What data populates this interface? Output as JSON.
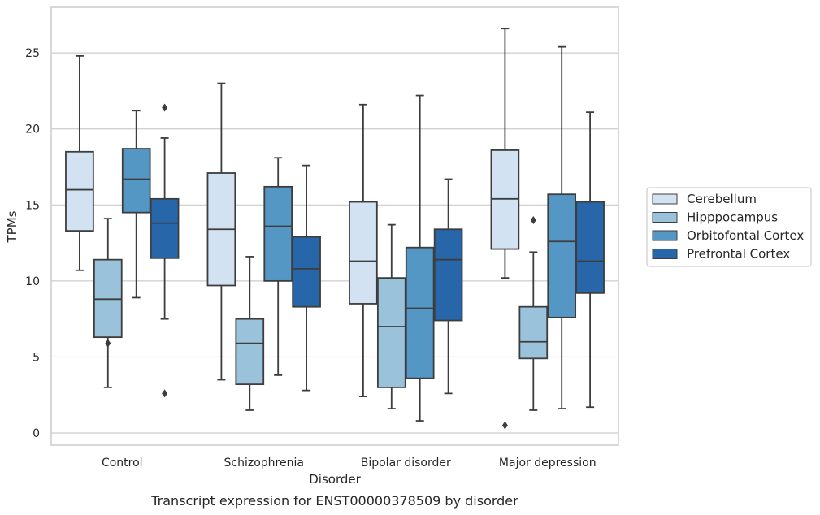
{
  "chart_data": {
    "type": "boxplot",
    "caption": "Transcript expression for ENST00000378509 by disorder",
    "xlabel": "Disorder",
    "ylabel": "TPMs",
    "ylim": [
      -0.8,
      28
    ],
    "yticks": [
      0,
      5,
      10,
      15,
      20,
      25
    ],
    "categories": [
      "Control",
      "Schizophrenia",
      "Bipolar disorder",
      "Major depression"
    ],
    "grid": "horizontal",
    "legend_position": "right",
    "series": [
      {
        "name": "Cerebellum",
        "color": "#d2e2f2",
        "boxes": [
          {
            "whisker_low": 10.7,
            "q1": 13.3,
            "median": 16.0,
            "q3": 18.5,
            "whisker_high": 24.8,
            "outliers": []
          },
          {
            "whisker_low": 3.5,
            "q1": 9.7,
            "median": 13.4,
            "q3": 17.1,
            "whisker_high": 23.0,
            "outliers": []
          },
          {
            "whisker_low": 2.4,
            "q1": 8.5,
            "median": 11.3,
            "q3": 15.2,
            "whisker_high": 21.6,
            "outliers": []
          },
          {
            "whisker_low": 10.2,
            "q1": 12.1,
            "median": 15.4,
            "q3": 18.6,
            "whisker_high": 26.6,
            "outliers": [
              0.5
            ]
          }
        ]
      },
      {
        "name": "Hipppocampus",
        "color": "#9ac3db",
        "boxes": [
          {
            "whisker_low": 3.0,
            "q1": 6.3,
            "median": 8.8,
            "q3": 11.4,
            "whisker_high": 14.1,
            "outliers": [
              5.9
            ]
          },
          {
            "whisker_low": 1.5,
            "q1": 3.2,
            "median": 5.9,
            "q3": 7.5,
            "whisker_high": 11.6,
            "outliers": []
          },
          {
            "whisker_low": 1.6,
            "q1": 3.0,
            "median": 7.0,
            "q3": 10.2,
            "whisker_high": 13.7,
            "outliers": []
          },
          {
            "whisker_low": 1.5,
            "q1": 4.9,
            "median": 6.0,
            "q3": 8.3,
            "whisker_high": 11.9,
            "outliers": [
              14.0
            ]
          }
        ]
      },
      {
        "name": "Orbitofontal Cortex",
        "color": "#5597c4",
        "boxes": [
          {
            "whisker_low": 8.9,
            "q1": 14.5,
            "median": 16.7,
            "q3": 18.7,
            "whisker_high": 21.2,
            "outliers": []
          },
          {
            "whisker_low": 3.8,
            "q1": 10.0,
            "median": 13.6,
            "q3": 16.2,
            "whisker_high": 18.1,
            "outliers": []
          },
          {
            "whisker_low": 0.8,
            "q1": 3.6,
            "median": 8.2,
            "q3": 12.2,
            "whisker_high": 22.2,
            "outliers": []
          },
          {
            "whisker_low": 1.6,
            "q1": 7.6,
            "median": 12.6,
            "q3": 15.7,
            "whisker_high": 25.4,
            "outliers": []
          }
        ]
      },
      {
        "name": "Prefrontal Cortex",
        "color": "#2766a8",
        "boxes": [
          {
            "whisker_low": 7.5,
            "q1": 11.5,
            "median": 13.8,
            "q3": 15.4,
            "whisker_high": 19.4,
            "outliers": [
              21.4,
              2.6
            ]
          },
          {
            "whisker_low": 2.8,
            "q1": 8.3,
            "median": 10.8,
            "q3": 12.9,
            "whisker_high": 17.6,
            "outliers": []
          },
          {
            "whisker_low": 2.6,
            "q1": 7.4,
            "median": 11.4,
            "q3": 13.4,
            "whisker_high": 16.7,
            "outliers": []
          },
          {
            "whisker_low": 1.7,
            "q1": 9.2,
            "median": 11.3,
            "q3": 15.2,
            "whisker_high": 21.1,
            "outliers": []
          }
        ]
      }
    ]
  }
}
